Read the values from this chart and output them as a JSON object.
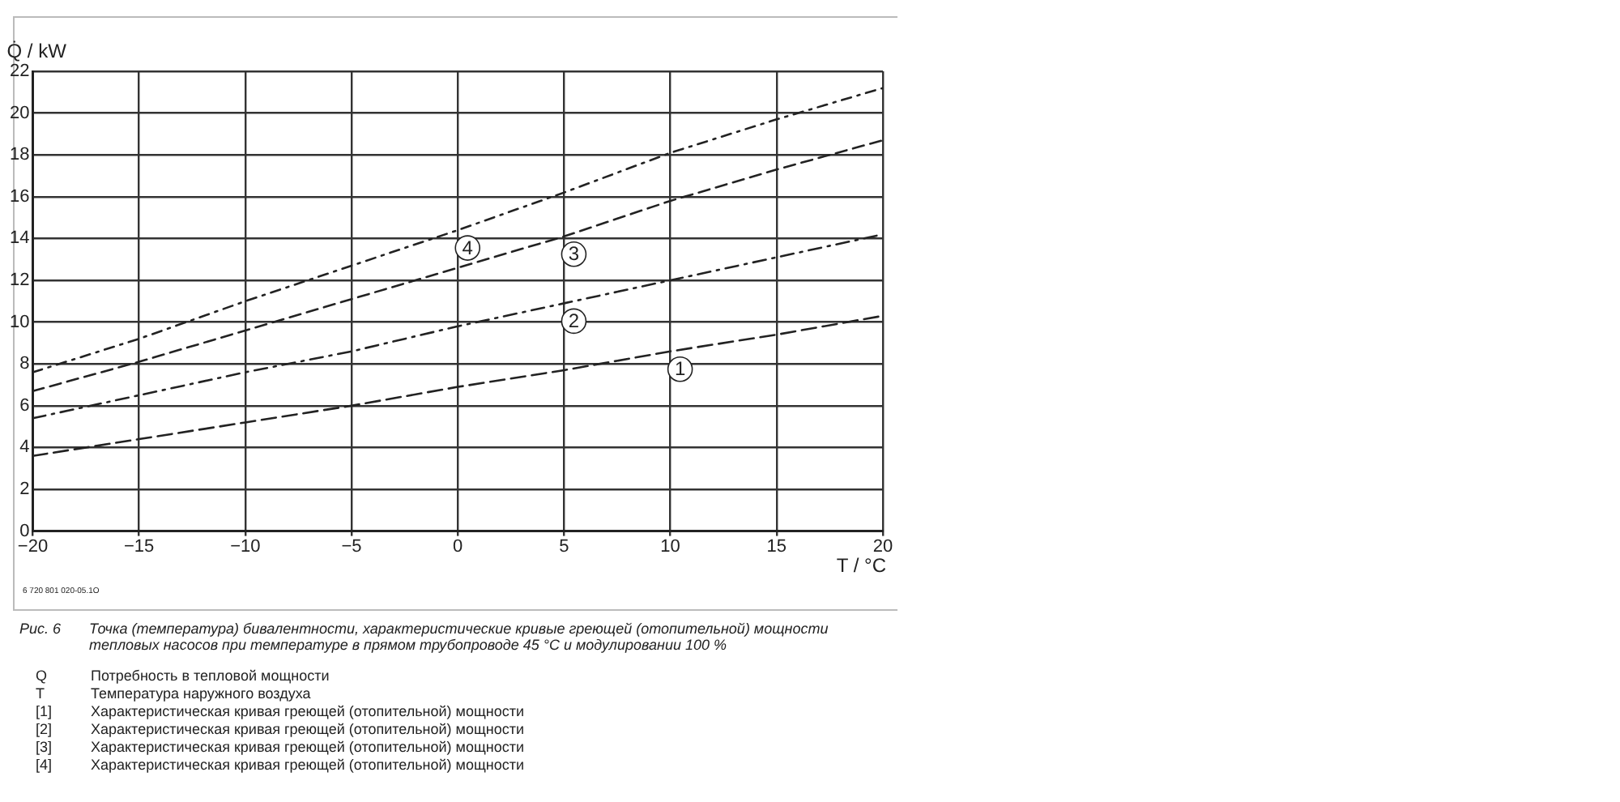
{
  "chart_data": {
    "type": "line",
    "xlabel": "T / °C",
    "ylabel": "Q̇ / kW",
    "x": [
      -20,
      -15,
      -10,
      -5,
      0,
      5,
      10,
      15,
      20
    ],
    "series": [
      {
        "name": "1",
        "color": "#222222",
        "values": [
          3.6,
          4.4,
          5.2,
          6.0,
          6.9,
          7.7,
          8.6,
          9.4,
          10.3
        ]
      },
      {
        "name": "2",
        "color": "#222222",
        "values": [
          5.4,
          6.5,
          7.6,
          8.6,
          9.8,
          10.9,
          12.0,
          13.1,
          14.2
        ]
      },
      {
        "name": "3",
        "color": "#222222",
        "values": [
          6.7,
          8.1,
          9.6,
          11.1,
          12.6,
          14.1,
          15.8,
          17.3,
          18.7
        ]
      },
      {
        "name": "4",
        "color": "#222222",
        "values": [
          7.6,
          9.2,
          11.0,
          12.7,
          14.4,
          16.2,
          18.1,
          19.7,
          21.2
        ]
      }
    ],
    "xlim": [
      -20,
      20
    ],
    "xticks": [
      {
        "value": -20,
        "label": "−20"
      },
      {
        "value": -15,
        "label": "−15"
      },
      {
        "value": -10,
        "label": "−10"
      },
      {
        "value": -5,
        "label": "−5"
      },
      0,
      5,
      10,
      15,
      20
    ],
    "ylim": [
      0,
      22
    ],
    "yticks": [
      0,
      2,
      4,
      6,
      8,
      10,
      12,
      14,
      16,
      18,
      20,
      22
    ],
    "grid": true,
    "legend": false,
    "marker": "none",
    "line_style": "dashed",
    "annotations": [
      "6 720 801 020-05.1O",
      "Рис. 6 Точка (температура) бивалентности, характеристические кривые греющей (отопительной) мощности тепловых насосов при температуре в прямом трубопроводе 45 °C и модулировании 100 %",
      "Q Потребность в тепловой мощности",
      "T Температура наружного воздуха",
      "[1] Характеристическая кривая греющей (отопительной) мощности",
      "[2] Характеристическая кривая греющей (отопительной) мощности",
      "[3] Характеристическая кривая греющей (отопительной) мощности",
      "[4] Характеристическая кривая греющей (отопительной) мощности"
    ]
  }
}
